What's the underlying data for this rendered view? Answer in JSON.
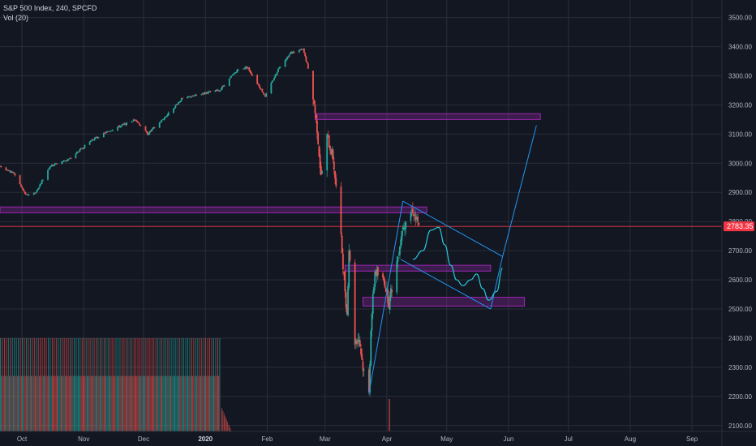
{
  "legend": {
    "symbol_line": "S&P 500 Index, 240, SPCFD",
    "volume_line": "Vol (20)"
  },
  "colors": {
    "background": "#131722",
    "grid": "#2a2e39",
    "up": "#26a69a",
    "down": "#ef5350",
    "zone_fill": "#9c27b0",
    "zone_stroke": "#9c27b0",
    "trend_line": "#2196f3",
    "path_line": "#26c6da",
    "price_line": "#f23645"
  },
  "chart_data": {
    "type": "candlestick",
    "symbol": "S&P 500 Index",
    "interval": "240",
    "exchange": "SPCFD",
    "ylim": [
      2080,
      3560
    ],
    "y_scale": "linear",
    "grid": true,
    "price_axis": "right",
    "y_ticks": [
      3500,
      3400,
      3300,
      3200,
      3100,
      3000,
      2900,
      2800,
      2700,
      2600,
      2500,
      2400,
      2300,
      2200,
      2100
    ],
    "x_ticks": [
      {
        "label": "Oct",
        "date": "2019-10-01"
      },
      {
        "label": "Nov",
        "date": "2019-11-01"
      },
      {
        "label": "Dec",
        "date": "2019-12-01"
      },
      {
        "label": "2020",
        "date": "2020-01-01",
        "bold": true
      },
      {
        "label": "Feb",
        "date": "2020-02-01"
      },
      {
        "label": "Mar",
        "date": "2020-03-01"
      },
      {
        "label": "Apr",
        "date": "2020-04-01"
      },
      {
        "label": "May",
        "date": "2020-05-01"
      },
      {
        "label": "Jun",
        "date": "2020-06-01"
      },
      {
        "label": "Jul",
        "date": "2020-07-01"
      },
      {
        "label": "Aug",
        "date": "2020-08-01"
      },
      {
        "label": "Sep",
        "date": "2020-09-01"
      }
    ],
    "current_price": {
      "value": "2783.35",
      "numeric": 2783.35
    },
    "price_path": [
      [
        "2019-09-20",
        2990
      ],
      [
        "2019-09-27",
        2965
      ],
      [
        "2019-10-03",
        2890
      ],
      [
        "2019-10-08",
        2900
      ],
      [
        "2019-10-15",
        2990
      ],
      [
        "2019-10-25",
        3015
      ],
      [
        "2019-11-05",
        3080
      ],
      [
        "2019-11-15",
        3115
      ],
      [
        "2019-11-27",
        3150
      ],
      [
        "2019-12-03",
        3100
      ],
      [
        "2019-12-12",
        3160
      ],
      [
        "2019-12-20",
        3220
      ],
      [
        "2019-12-31",
        3240
      ],
      [
        "2020-01-08",
        3250
      ],
      [
        "2020-01-17",
        3320
      ],
      [
        "2020-01-22",
        3330
      ],
      [
        "2020-01-31",
        3230
      ],
      [
        "2020-02-07",
        3330
      ],
      [
        "2020-02-13",
        3380
      ],
      [
        "2020-02-19",
        3390
      ],
      [
        "2020-02-21",
        3340
      ],
      [
        "2020-02-24",
        3230
      ],
      [
        "2020-02-26",
        3120
      ],
      [
        "2020-02-28",
        2950
      ],
      [
        "2020-03-02",
        3090
      ],
      [
        "2020-03-05",
        3020
      ],
      [
        "2020-03-09",
        2740
      ],
      [
        "2020-03-12",
        2480
      ],
      [
        "2020-03-13",
        2710
      ],
      [
        "2020-03-16",
        2390
      ],
      [
        "2020-03-18",
        2400
      ],
      [
        "2020-03-20",
        2300
      ],
      [
        "2020-03-23",
        2210
      ],
      [
        "2020-03-24",
        2440
      ],
      [
        "2020-03-26",
        2630
      ],
      [
        "2020-03-31",
        2590
      ],
      [
        "2020-04-02",
        2520
      ],
      [
        "2020-04-06",
        2660
      ],
      [
        "2020-04-09",
        2790
      ],
      [
        "2020-04-14",
        2840
      ],
      [
        "2020-04-17",
        2780
      ]
    ],
    "volume": {
      "start_date": "2019-09-20",
      "end_date": "2020-01-08",
      "upper_level": 0.74,
      "lower_level": 0.44,
      "tail_start_date": "2020-01-09",
      "tail_end_date": "2020-01-15"
    },
    "support_resistance_zones": [
      {
        "from": "2020-02-25",
        "to": "2020-06-17",
        "top": 3170,
        "bottom": 3150
      },
      {
        "from": "2019-09-20",
        "to": "2020-04-21",
        "top": 2850,
        "bottom": 2830
      },
      {
        "from": "2020-03-11",
        "to": "2020-05-23",
        "top": 2650,
        "bottom": 2630
      },
      {
        "from": "2020-03-20",
        "to": "2020-06-09",
        "top": 2540,
        "bottom": 2510
      }
    ],
    "trend_lines": [
      [
        [
          "2020-03-23",
          2210
        ],
        [
          "2020-04-09",
          2870
        ]
      ],
      [
        [
          "2020-04-09",
          2870
        ],
        [
          "2020-05-29",
          2680
        ]
      ],
      [
        [
          "2020-04-08",
          2670
        ],
        [
          "2020-05-23",
          2500
        ]
      ],
      [
        [
          "2020-05-23",
          2500
        ],
        [
          "2020-05-29",
          2680
        ]
      ],
      [
        [
          "2020-05-29",
          2680
        ],
        [
          "2020-06-15",
          3130
        ]
      ]
    ],
    "projected_path": [
      [
        "2020-04-14",
        2670
      ],
      [
        "2020-04-19",
        2700
      ],
      [
        "2020-04-23",
        2770
      ],
      [
        "2020-04-27",
        2780
      ],
      [
        "2020-04-30",
        2720
      ],
      [
        "2020-05-03",
        2650
      ],
      [
        "2020-05-06",
        2600
      ],
      [
        "2020-05-09",
        2580
      ],
      [
        "2020-05-13",
        2600
      ],
      [
        "2020-05-16",
        2620
      ],
      [
        "2020-05-19",
        2570
      ],
      [
        "2020-05-22",
        2530
      ],
      [
        "2020-05-26",
        2560
      ],
      [
        "2020-05-29",
        2640
      ]
    ],
    "single_volume_bar_date": "2020-04-02"
  }
}
